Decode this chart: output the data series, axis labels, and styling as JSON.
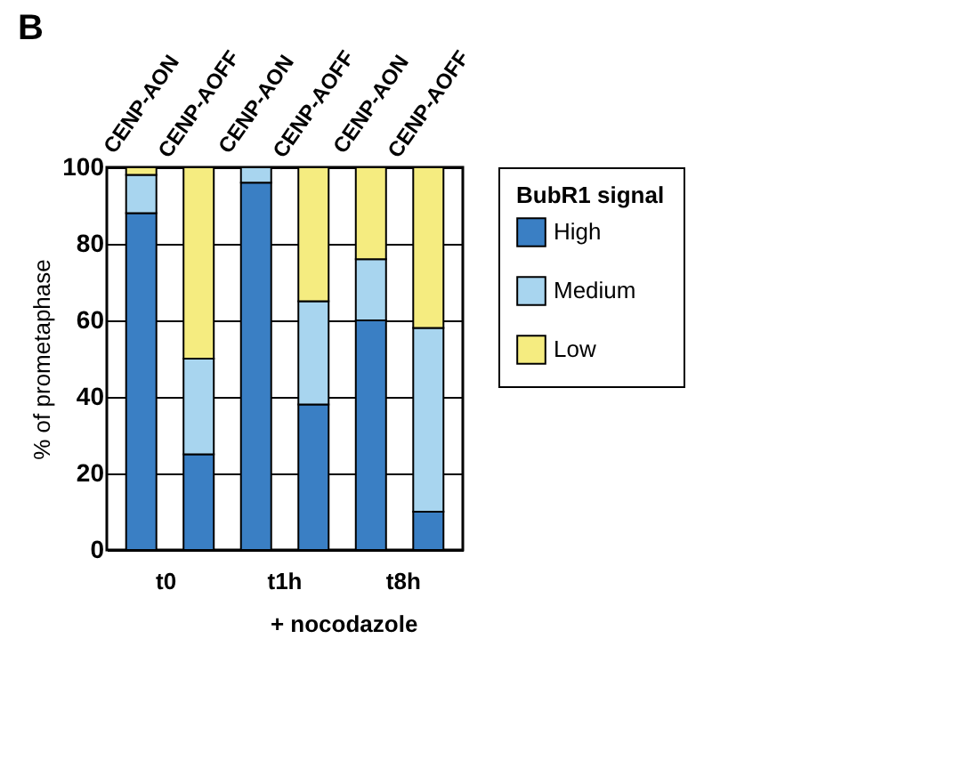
{
  "chart_data": {
    "type": "bar",
    "title": "B",
    "ylabel": "% of prometaphase",
    "legend_title": "BubR1 signal",
    "categories": [
      "CENP-AON",
      "CENP-AOFF",
      "CENP-AON",
      "CENP-AOFF",
      "CENP-AON",
      "CENP-AOFF"
    ],
    "stacked": true,
    "ylim": [
      0,
      100
    ],
    "yticks": [
      0,
      20,
      40,
      60,
      80,
      100
    ],
    "grid": "y",
    "legend": "right",
    "series": [
      {
        "name": "High",
        "color": "#3a7fc4",
        "values": [
          88,
          25,
          96,
          38,
          60,
          10
        ]
      },
      {
        "name": "Medium",
        "color": "#a8d5ef",
        "values": [
          10,
          25,
          4,
          27,
          16,
          48
        ]
      },
      {
        "name": "Low",
        "color": "#f5ec80",
        "values": [
          2,
          50,
          null,
          35,
          24,
          42
        ]
      }
    ],
    "annotations": [
      "t0",
      "t1h",
      "t8h",
      "+ nocodazole"
    ]
  }
}
